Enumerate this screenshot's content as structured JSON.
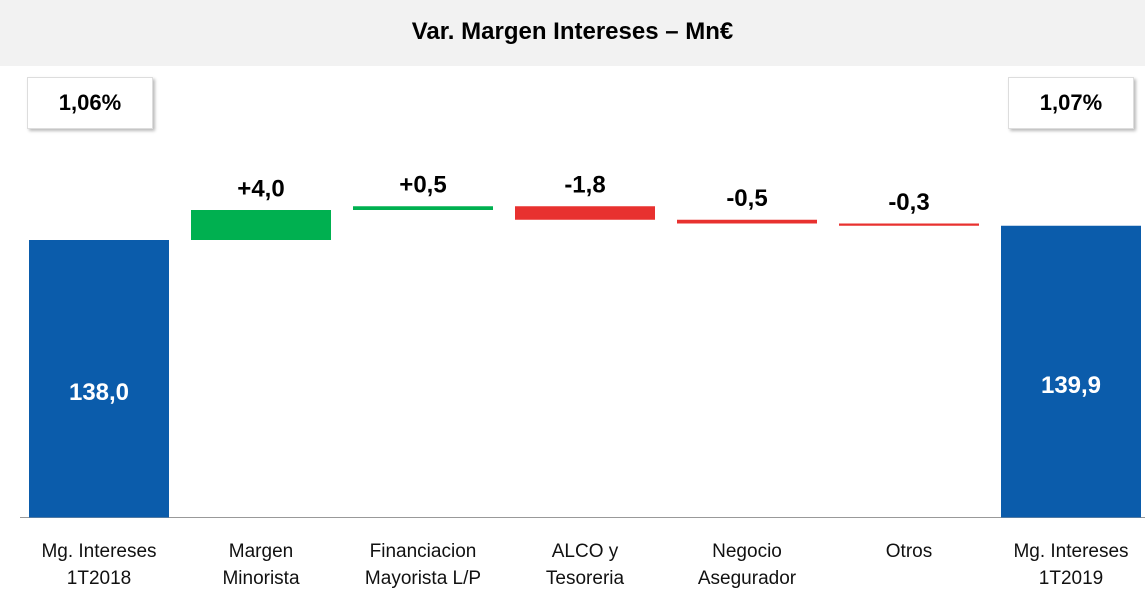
{
  "chart_data": {
    "type": "waterfall",
    "title": "Var. Margen Intereses – Mn€",
    "categories": [
      "Mg. Intereses\n1T2018",
      "Margen\nMinorista",
      "Financiacion\nMayorista L/P",
      "ALCO y\nTesoreria",
      "Negocio\nAsegurador",
      "Otros",
      "Mg. Intereses\n1T2019"
    ],
    "values": [
      138.0,
      4.0,
      0.5,
      -1.8,
      -0.5,
      -0.3,
      139.9
    ],
    "value_labels": [
      "138,0",
      "+4,0",
      "+0,5",
      "-1,8",
      "-0,5",
      "-0,3",
      "139,9"
    ],
    "measure": [
      "absolute",
      "relative",
      "relative",
      "relative",
      "relative",
      "relative",
      "absolute"
    ],
    "total_color": "#0b5cab",
    "increase_color": "#00b050",
    "decrease_color": "#e8312f",
    "ylim": [
      101,
      145
    ],
    "annotations": [
      "1,06%",
      "1,07%"
    ]
  }
}
